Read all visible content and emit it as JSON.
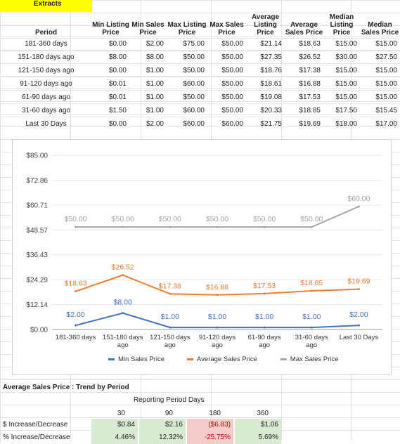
{
  "sheet_title": "Extracts",
  "table": {
    "headers": [
      "Period",
      "Min Listing Price",
      "Min Sales Price",
      "Max Listing Price",
      "Max Sales Price",
      "Average Listing Price",
      "Average Sales Price",
      "Median Listing Price",
      "Median Sales Price"
    ],
    "rows": [
      [
        "181-360 days",
        "$0.00",
        "$2.00",
        "$75.00",
        "$50.00",
        "$21.14",
        "$18.63",
        "$15.00",
        "$15.00"
      ],
      [
        "151-180 days ago",
        "$8.00",
        "$8.00",
        "$50.00",
        "$50.00",
        "$27.35",
        "$26.52",
        "$30.00",
        "$27.50"
      ],
      [
        "121-150 days ago",
        "$0.00",
        "$1.00",
        "$50.00",
        "$50.00",
        "$18.76",
        "$17.38",
        "$15.00",
        "$15.00"
      ],
      [
        "91-120 days ago",
        "$0.01",
        "$1.00",
        "$60.00",
        "$50.00",
        "$18.61",
        "$16.88",
        "$15.00",
        "$15.00"
      ],
      [
        "61-90 days ago",
        "$0.01",
        "$1.00",
        "$50.00",
        "$50.00",
        "$19.08",
        "$17.53",
        "$15.00",
        "$15.00"
      ],
      [
        "31-60 days ago",
        "$1.50",
        "$1.00",
        "$60.00",
        "$50.00",
        "$20.33",
        "$18.85",
        "$17.50",
        "$15.45"
      ],
      [
        "Last 30 Days",
        "$0.00",
        "$2.00",
        "$60.00",
        "$60.00",
        "$21.75",
        "$19.69",
        "$18.00",
        "$17.00"
      ]
    ]
  },
  "chart_data": {
    "type": "line",
    "categories": [
      "181-360 days",
      "151-180 days ago",
      "121-150 days ago",
      "91-120 days ago",
      "61-90 days ago",
      "31-60 days ago",
      "Last 30 Days"
    ],
    "y_ticks": [
      "$0.00",
      "$12.14",
      "$24.29",
      "$36.43",
      "$48.57",
      "$60.71",
      "$72.86",
      "$85.00"
    ],
    "ylim": [
      0,
      85
    ],
    "series": [
      {
        "name": "Min Sales Price",
        "color": "#4472c4",
        "values": [
          2,
          8,
          1,
          1,
          1,
          1,
          2
        ],
        "labels": [
          "$2.00",
          "$8.00",
          "$1.00",
          "$1.00",
          "$1.00",
          "$1.00",
          "$2.00"
        ]
      },
      {
        "name": "Average Sales Price",
        "color": "#ed7d31",
        "values": [
          18.63,
          26.52,
          17.38,
          16.88,
          17.53,
          18.85,
          19.69
        ],
        "labels": [
          "$18.63",
          "$26.52",
          "$17.38",
          "$16.88",
          "$17.53",
          "$18.85",
          "$19.69"
        ]
      },
      {
        "name": "Max Sales Price",
        "color": "#a5a5a5",
        "values": [
          50,
          50,
          50,
          50,
          50,
          50,
          60
        ],
        "labels": [
          "$50.00",
          "$50.00",
          "$50.00",
          "$50.00",
          "$50.00",
          "$50.00",
          "$60.00"
        ]
      }
    ],
    "legend": "bottom",
    "grid": true
  },
  "trend": {
    "title": "Average Sales Price : Trend by Period",
    "period_title": "Reporting Period Days",
    "periods": [
      "30",
      "90",
      "180",
      "360"
    ],
    "rows": [
      {
        "label": "$ Increase/Decrease",
        "values": [
          "$0.84",
          "$2.16",
          "($6.83)",
          "$1.06"
        ],
        "neg": [
          false,
          false,
          true,
          false
        ]
      },
      {
        "label": "% Increase/Decrease",
        "values": [
          "4.46%",
          "12.32%",
          "-25.75%",
          "5.69%"
        ],
        "neg": [
          false,
          false,
          true,
          false
        ]
      }
    ]
  }
}
